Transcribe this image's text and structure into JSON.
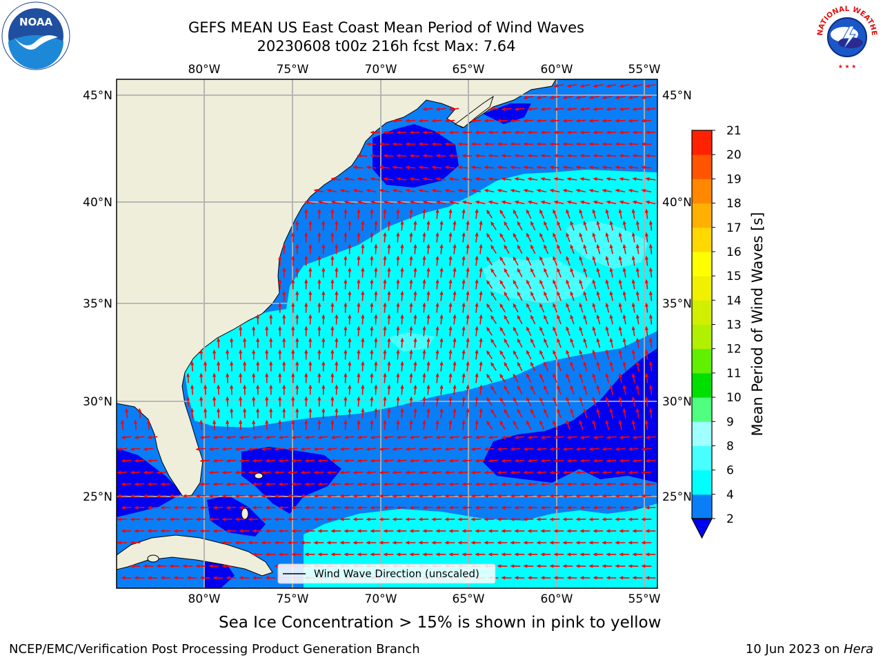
{
  "header": {
    "title_line1": "GEFS MEAN US East Coast Mean Period of Wind Waves",
    "title_line2": "20230608 t00z 216h fcst   Max: 7.64"
  },
  "logos": {
    "left": {
      "icon": "noaa-logo-icon",
      "text": "NOAA"
    },
    "right": {
      "icon": "nws-logo-icon",
      "text": "NATIONAL WEATHER SERVICE"
    }
  },
  "map": {
    "lon_labels": [
      "80°W",
      "75°W",
      "70°W",
      "65°W",
      "60°W",
      "55°W"
    ],
    "lat_labels": [
      "45°N",
      "40°N",
      "35°N",
      "30°N",
      "25°N"
    ],
    "legend_label": "Wind Wave Direction (unscaled)",
    "colors": {
      "land": "#efeedb",
      "band_2_4": "#0a7ef6",
      "band_lt_2": "#0000f0",
      "band_4_6": "#00ffff",
      "band_6_8": "#48ffff",
      "arrow": "#ff0000",
      "grid": "#b0b0b0"
    }
  },
  "colorbar": {
    "label": "Mean Period of Wind Waves [s]",
    "ticks": [
      "2",
      "4",
      "6",
      "8",
      "9",
      "10",
      "11",
      "12",
      "13",
      "14",
      "15",
      "16",
      "17",
      "18",
      "19",
      "20",
      "21"
    ],
    "colors": [
      "#0a7ef6",
      "#00ffff",
      "#48ffff",
      "#a0ffff",
      "#50ff80",
      "#00e000",
      "#60f000",
      "#b0f000",
      "#d0f000",
      "#f0f000",
      "#ffff00",
      "#ffd800",
      "#ffb000",
      "#ff8800",
      "#ff5500",
      "#ff2200",
      "#ff0000"
    ],
    "under_color": "#0000f0"
  },
  "footer": {
    "sea_ice_note": "Sea Ice Concentration > 15% is shown in pink to yellow",
    "left": "NCEP/EMC/Verification Post Processing Product Generation Branch",
    "right_date": "10 Jun 2023 on ",
    "right_machine": "Hera"
  }
}
